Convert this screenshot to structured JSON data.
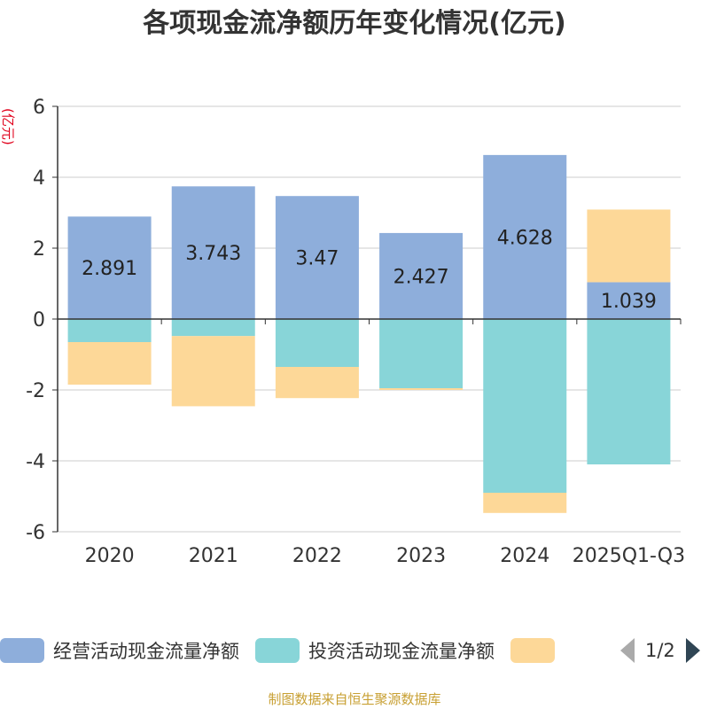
{
  "chart_data": {
    "type": "bar",
    "stacked": true,
    "title": "各项现金流净额历年变化情况(亿元)",
    "ylabel": "(亿元)",
    "ylim": [
      -6,
      6
    ],
    "yticks": [
      6,
      4,
      2,
      0,
      -2,
      -4,
      -6
    ],
    "categories": [
      "2020",
      "2021",
      "2022",
      "2023",
      "2024",
      "2025Q1-Q3"
    ],
    "series": [
      {
        "name": "经营活动现金流量净额",
        "color": "#8eaedb",
        "values": [
          2.891,
          3.743,
          3.47,
          2.427,
          4.628,
          1.039
        ],
        "show_labels": true
      },
      {
        "name": "投资活动现金流量净额",
        "color": "#88d5d8",
        "values": [
          -0.65,
          -0.48,
          -1.35,
          -1.95,
          -4.9,
          -4.1
        ],
        "show_labels": false
      },
      {
        "name": "",
        "color": "#fdd898",
        "values": [
          -1.2,
          -1.98,
          -0.88,
          -0.05,
          -0.57,
          2.05
        ],
        "show_labels": false
      }
    ]
  },
  "legend": {
    "page": "1/2"
  },
  "source": "制图数据来自恒生聚源数据库"
}
